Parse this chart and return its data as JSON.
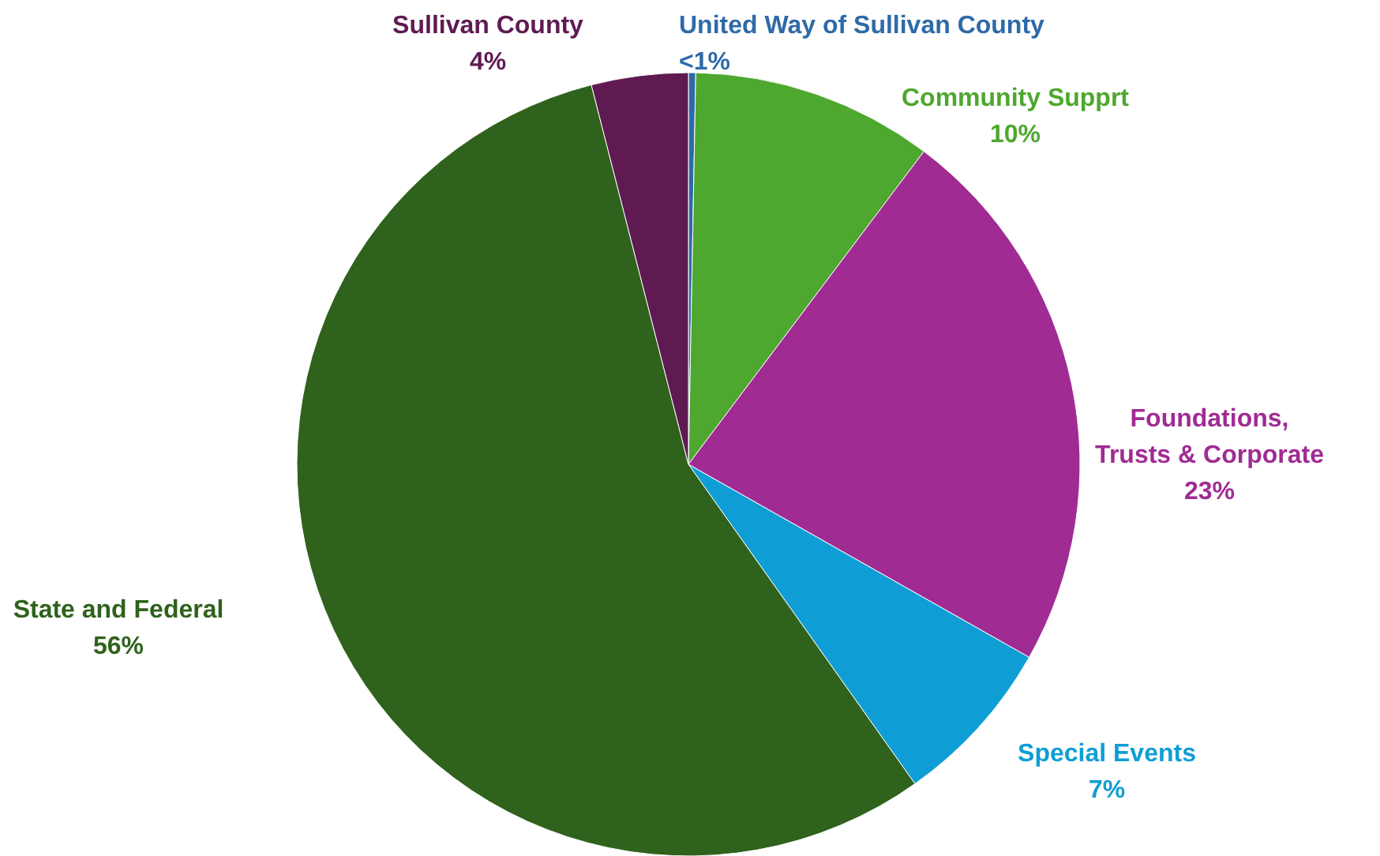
{
  "chart_data": {
    "type": "pie",
    "categories": [
      "United Way of Sullivan County",
      "Community Supprt",
      "Foundations, Trusts & Corporate",
      "Special Events",
      "State and Federal",
      "Sullivan County"
    ],
    "values": [
      0.3,
      10,
      23,
      7,
      56,
      4
    ],
    "value_labels": [
      "<1%",
      "10%",
      "23%",
      "7%",
      "56%",
      "4%"
    ],
    "colors": [
      "#2e6aa8",
      "#4ea72e",
      "#a02b93",
      "#0e9ed5",
      "#2f621c",
      "#5f1a52"
    ]
  }
}
